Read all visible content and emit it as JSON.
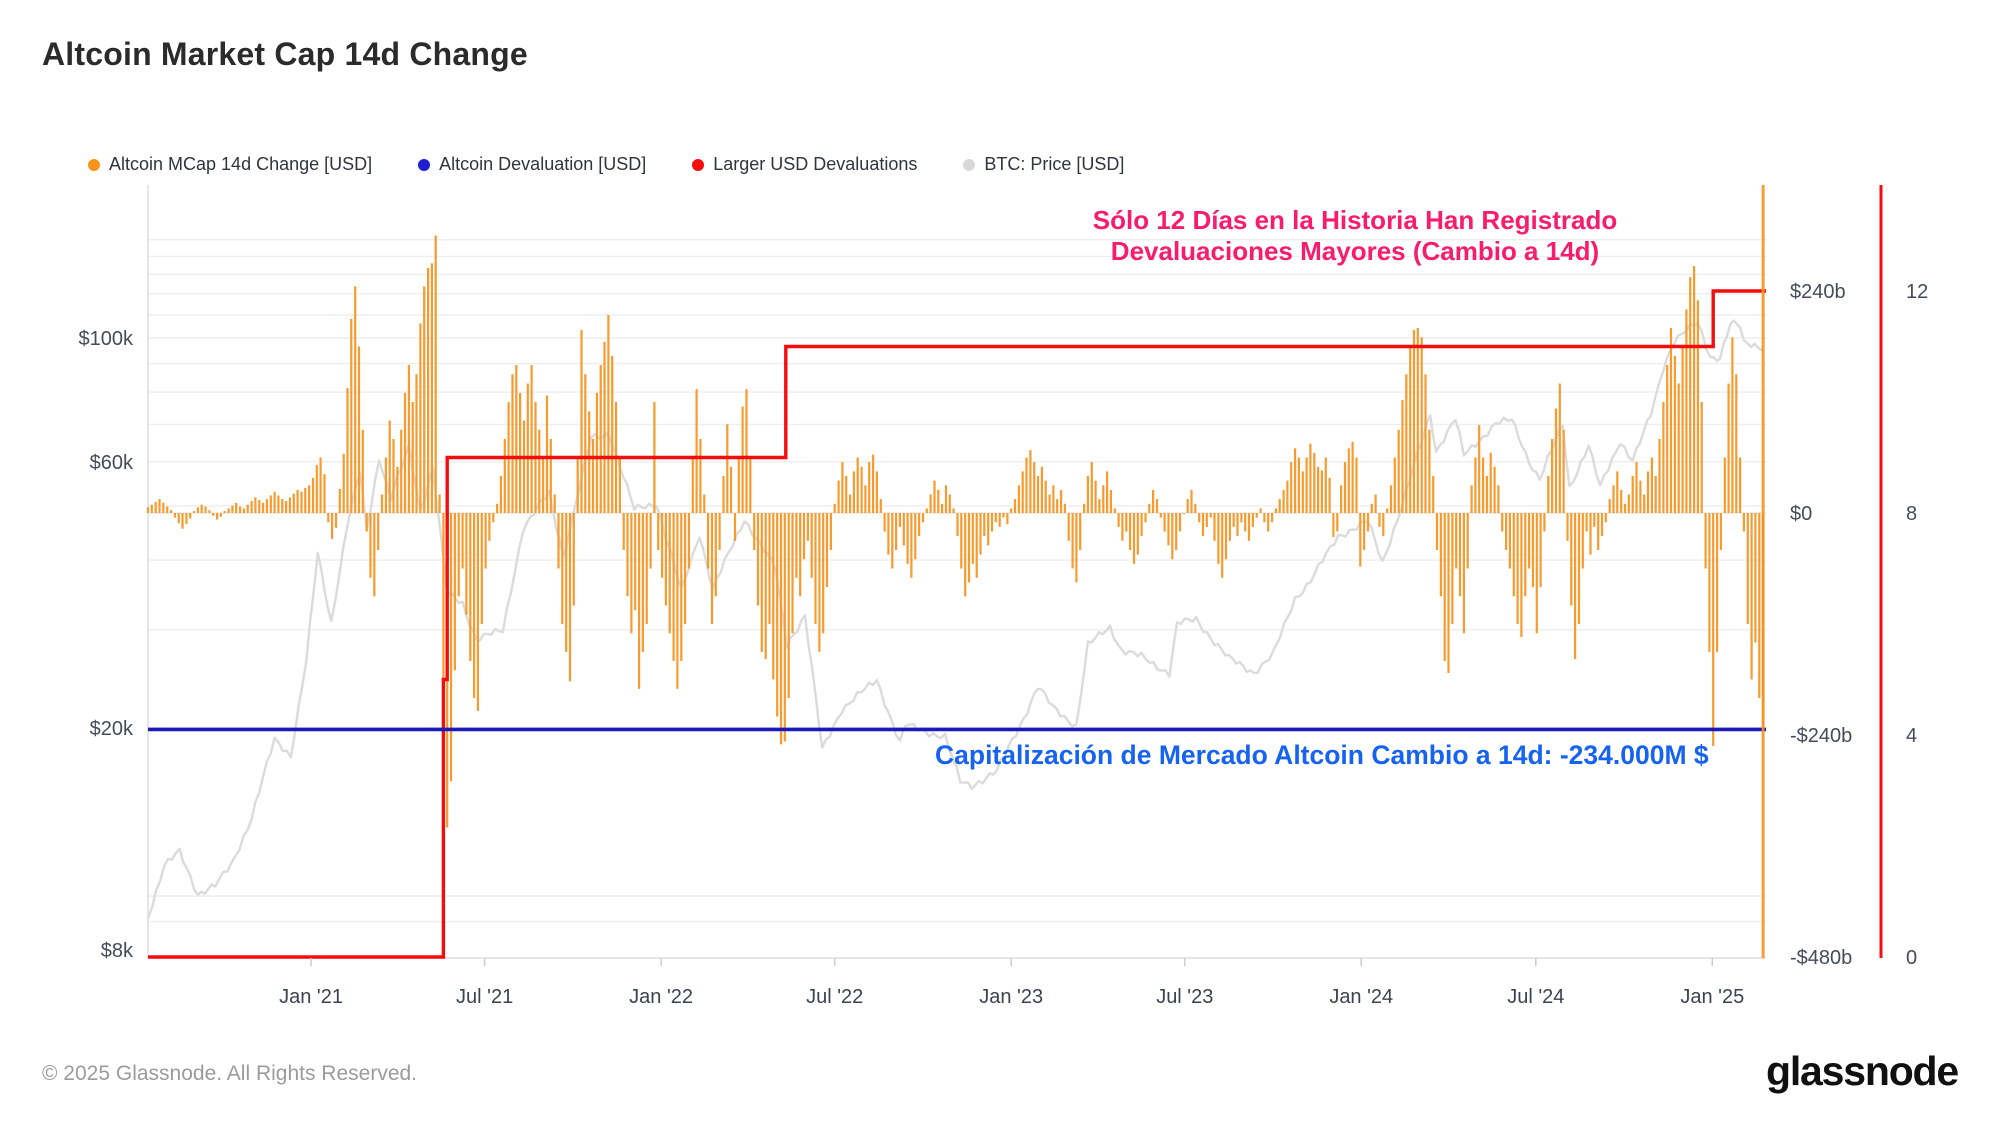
{
  "title": "Altcoin Market Cap 14d Change",
  "legend": {
    "items": [
      {
        "label": "Altcoin MCap 14d Change [USD]",
        "color": "#f7941e"
      },
      {
        "label": "Altcoin Devaluation [USD]",
        "color": "#1d1fd1"
      },
      {
        "label": "Larger USD Devaluations",
        "color": "#f40d0d"
      },
      {
        "label": "BTC: Price [USD]",
        "color": "#d8d8d8"
      }
    ]
  },
  "annotations": {
    "pink_line1": "Sólo 12 Días en la Historia Han Registrado",
    "pink_line2": "Devaluaciones Mayores (Cambio a 14d)",
    "pink_color": "#f81c6f",
    "blue_text": "Capitalización de Mercado Altcoin Cambio a 14d: -234.000M $",
    "blue_color": "#1563f0"
  },
  "footer": {
    "copyright": "© 2025 Glassnode. All Rights Reserved.",
    "logo": "glassnode"
  },
  "chart_data": {
    "type": "mixed",
    "x_range": [
      "2020-07-15",
      "2025-02-26"
    ],
    "x_axis": {
      "ticks": [
        {
          "label": "Jan '21",
          "date": "2021-01-01"
        },
        {
          "label": "Jul '21",
          "date": "2021-07-01"
        },
        {
          "label": "Jan '22",
          "date": "2022-01-01"
        },
        {
          "label": "Jul '22",
          "date": "2022-07-01"
        },
        {
          "label": "Jan '23",
          "date": "2023-01-01"
        },
        {
          "label": "Jul '23",
          "date": "2023-07-01"
        },
        {
          "label": "Jan '24",
          "date": "2024-01-01"
        },
        {
          "label": "Jul '24",
          "date": "2024-07-01"
        },
        {
          "label": "Jan '25",
          "date": "2025-01-01"
        }
      ]
    },
    "left_axis": {
      "title": "BTC: Price [USD]",
      "scale": "log",
      "unit": "USD",
      "range_k": [
        7.7,
        188
      ],
      "ticks": [
        {
          "label": "$100k",
          "value_k": 100
        },
        {
          "label": "$60k",
          "value_k": 60
        },
        {
          "label": "$20k",
          "value_k": 20
        },
        {
          "label": "$8k",
          "value_k": 8
        }
      ],
      "gridline_values_k": [
        9,
        10,
        20,
        30,
        40,
        50,
        60,
        70,
        80,
        90,
        100,
        110,
        120,
        130,
        140,
        150
      ]
    },
    "right_axis": {
      "title": "Altcoin MCap 14d Change",
      "scale": "linear",
      "unit": "billion USD",
      "range_b": [
        -480,
        355
      ],
      "ticks": [
        {
          "label": "$240b",
          "value_b": 240
        },
        {
          "label": "$0",
          "value_b": 0
        },
        {
          "label": "-$240b",
          "value_b": -240
        },
        {
          "label": "-$480b",
          "value_b": -480
        }
      ]
    },
    "count_axis": {
      "title": "Larger USD Devaluations (count of days)",
      "range": [
        0,
        12
      ],
      "ticks": [
        {
          "label": "12",
          "value": 12
        },
        {
          "label": "8",
          "value": 8
        },
        {
          "label": "4",
          "value": 4
        },
        {
          "label": "0",
          "value": 0
        }
      ]
    },
    "series": [
      {
        "name": "Altcoin MCap 14d Change [USD]",
        "type": "bar",
        "axis": "right_b",
        "color": "#f79b2f",
        "start": "2020-07-15",
        "step_days": 4,
        "values": [
          6,
          9,
          12,
          15,
          11,
          7,
          3,
          -5,
          -11,
          -17,
          -12,
          -6,
          2,
          6,
          9,
          7,
          3,
          -3,
          -7,
          -4,
          2,
          5,
          8,
          11,
          7,
          5,
          9,
          13,
          17,
          14,
          11,
          15,
          19,
          23,
          19,
          15,
          13,
          17,
          21,
          25,
          23,
          27,
          30,
          38,
          52,
          60,
          42,
          -10,
          -28,
          -16,
          26,
          64,
          135,
          210,
          245,
          180,
          90,
          -20,
          -70,
          -90,
          -40,
          20,
          60,
          100,
          80,
          50,
          90,
          130,
          160,
          120,
          150,
          205,
          245,
          265,
          270,
          300,
          20,
          -200,
          -340,
          -290,
          -170,
          -90,
          -60,
          -110,
          -160,
          -200,
          -214,
          -120,
          -60,
          -30,
          -10,
          10,
          40,
          80,
          120,
          150,
          160,
          130,
          100,
          140,
          160,
          120,
          90,
          60,
          127,
          80,
          20,
          -60,
          -120,
          -150,
          -182,
          -100,
          60,
          198,
          150,
          110,
          80,
          130,
          160,
          185,
          214,
          170,
          120,
          60,
          -40,
          -90,
          -130,
          -105,
          -190,
          -150,
          -120,
          -60,
          120,
          -40,
          -70,
          -100,
          -130,
          -160,
          -190,
          -160,
          -120,
          -60,
          60,
          134,
          80,
          20,
          -60,
          -120,
          -90,
          -40,
          40,
          96,
          50,
          -30,
          60,
          115,
          134,
          60,
          -40,
          -100,
          -150,
          -158,
          -120,
          -180,
          -220,
          -250,
          -247,
          -200,
          -130,
          -70,
          -90,
          -50,
          -30,
          -70,
          -120,
          -150,
          -130,
          -80,
          -40,
          10,
          35,
          55,
          40,
          20,
          45,
          60,
          50,
          30,
          55,
          63,
          45,
          15,
          -20,
          -45,
          -60,
          -40,
          -15,
          -35,
          -55,
          -70,
          -50,
          -25,
          -10,
          5,
          20,
          35,
          25,
          10,
          30,
          20,
          5,
          -25,
          -60,
          -90,
          -75,
          -55,
          -70,
          -45,
          -25,
          -35,
          -20,
          -10,
          -15,
          -5,
          -12,
          5,
          15,
          30,
          45,
          60,
          68,
          55,
          40,
          50,
          35,
          20,
          30,
          15,
          25,
          10,
          -30,
          -60,
          -75,
          -40,
          10,
          40,
          55,
          35,
          15,
          30,
          45,
          25,
          5,
          -15,
          -30,
          -20,
          -40,
          -55,
          -45,
          -25,
          -10,
          10,
          25,
          15,
          -5,
          -20,
          -35,
          -50,
          -40,
          -20,
          0,
          15,
          25,
          10,
          -10,
          -25,
          -15,
          -5,
          -30,
          -55,
          -70,
          -50,
          -30,
          -15,
          -25,
          -10,
          -20,
          -30,
          -15,
          -5,
          5,
          -10,
          -20,
          -10,
          5,
          15,
          25,
          35,
          55,
          70,
          60,
          45,
          60,
          75,
          65,
          50,
          46,
          60,
          38,
          -26,
          -20,
          30,
          55,
          70,
          77,
          60,
          -58,
          -40,
          -20,
          10,
          20,
          -15,
          -25,
          5,
          30,
          60,
          90,
          122,
          150,
          180,
          198,
          200,
          190,
          150,
          90,
          40,
          -40,
          -90,
          -160,
          -173,
          -120,
          -60,
          -90,
          -130,
          -60,
          30,
          60,
          95,
          60,
          40,
          65,
          50,
          30,
          -20,
          -40,
          -60,
          -90,
          -120,
          -134,
          -90,
          -60,
          -80,
          -130,
          -80,
          -20,
          40,
          80,
          113,
          140,
          90,
          -30,
          -100,
          -158,
          -120,
          -60,
          -20,
          -45,
          -15,
          -40,
          -25,
          -10,
          15,
          30,
          45,
          25,
          10,
          20,
          40,
          55,
          35,
          20,
          45,
          60,
          40,
          80,
          120,
          160,
          200,
          170,
          140,
          180,
          220,
          255,
          267,
          230,
          120,
          -60,
          -150,
          -252,
          -150,
          -40,
          60,
          140,
          190,
          150,
          60,
          -20,
          -120,
          -180,
          -140,
          -200,
          -234
        ]
      },
      {
        "name": "BTC: Price [USD]",
        "type": "line",
        "axis": "left_log_k",
        "color": "#d9d9d9",
        "points": [
          [
            "2020-07-15",
            9.2
          ],
          [
            "2020-08-01",
            11.3
          ],
          [
            "2020-08-17",
            12.0
          ],
          [
            "2020-09-05",
            10.1
          ],
          [
            "2020-09-23",
            10.4
          ],
          [
            "2020-10-10",
            11.4
          ],
          [
            "2020-10-31",
            13.8
          ],
          [
            "2020-11-24",
            19.1
          ],
          [
            "2020-12-11",
            17.9
          ],
          [
            "2020-12-27",
            26.3
          ],
          [
            "2021-01-08",
            41.0
          ],
          [
            "2021-01-22",
            31.0
          ],
          [
            "2021-02-08",
            46.4
          ],
          [
            "2021-02-21",
            57.4
          ],
          [
            "2021-02-28",
            45.2
          ],
          [
            "2021-03-13",
            61.2
          ],
          [
            "2021-03-25",
            51.7
          ],
          [
            "2021-04-13",
            63.5
          ],
          [
            "2021-04-25",
            49.1
          ],
          [
            "2021-05-08",
            58.8
          ],
          [
            "2021-05-23",
            34.8
          ],
          [
            "2021-06-08",
            33.4
          ],
          [
            "2021-06-22",
            29.0
          ],
          [
            "2021-07-20",
            29.8
          ],
          [
            "2021-08-10",
            45.6
          ],
          [
            "2021-09-06",
            52.7
          ],
          [
            "2021-09-21",
            40.7
          ],
          [
            "2021-10-20",
            66.0
          ],
          [
            "2021-11-08",
            67.5
          ],
          [
            "2021-12-04",
            49.2
          ],
          [
            "2021-12-27",
            50.7
          ],
          [
            "2022-01-22",
            35.1
          ],
          [
            "2022-02-10",
            44.6
          ],
          [
            "2022-02-24",
            35.5
          ],
          [
            "2022-03-29",
            47.4
          ],
          [
            "2022-04-30",
            38.6
          ],
          [
            "2022-05-12",
            28.3
          ],
          [
            "2022-05-31",
            31.8
          ],
          [
            "2022-06-18",
            18.3
          ],
          [
            "2022-07-08",
            21.6
          ],
          [
            "2022-08-14",
            24.4
          ],
          [
            "2022-09-07",
            18.8
          ],
          [
            "2022-09-13",
            20.2
          ],
          [
            "2022-10-24",
            19.3
          ],
          [
            "2022-11-09",
            16.0
          ],
          [
            "2022-11-21",
            15.8
          ],
          [
            "2022-12-17",
            16.7
          ],
          [
            "2023-01-14",
            20.9
          ],
          [
            "2023-01-29",
            23.7
          ],
          [
            "2023-02-13",
            21.8
          ],
          [
            "2023-03-10",
            20.2
          ],
          [
            "2023-03-22",
            28.1
          ],
          [
            "2023-04-14",
            30.4
          ],
          [
            "2023-04-26",
            27.6
          ],
          [
            "2023-05-17",
            26.8
          ],
          [
            "2023-06-15",
            25.1
          ],
          [
            "2023-06-23",
            30.7
          ],
          [
            "2023-07-13",
            31.3
          ],
          [
            "2023-08-16",
            26.6
          ],
          [
            "2023-09-11",
            25.2
          ],
          [
            "2023-10-01",
            27.0
          ],
          [
            "2023-10-24",
            34.2
          ],
          [
            "2023-11-09",
            36.7
          ],
          [
            "2023-12-08",
            44.2
          ],
          [
            "2024-01-08",
            46.9
          ],
          [
            "2024-01-23",
            39.6
          ],
          [
            "2024-02-12",
            49.9
          ],
          [
            "2024-02-28",
            61.2
          ],
          [
            "2024-03-13",
            73.1
          ],
          [
            "2024-03-19",
            62.8
          ],
          [
            "2024-04-08",
            71.6
          ],
          [
            "2024-04-17",
            61.5
          ],
          [
            "2024-05-20",
            70.3
          ],
          [
            "2024-06-06",
            71.1
          ],
          [
            "2024-06-24",
            60.3
          ],
          [
            "2024-07-05",
            55.9
          ],
          [
            "2024-07-29",
            69.9
          ],
          [
            "2024-08-05",
            54.0
          ],
          [
            "2024-08-25",
            64.2
          ],
          [
            "2024-09-06",
            53.9
          ],
          [
            "2024-09-27",
            65.5
          ],
          [
            "2024-10-10",
            60.3
          ],
          [
            "2024-10-29",
            72.7
          ],
          [
            "2024-11-11",
            88.7
          ],
          [
            "2024-11-22",
            99.0
          ],
          [
            "2024-12-05",
            103.0
          ],
          [
            "2024-12-17",
            106.1
          ],
          [
            "2024-12-30",
            92.6
          ],
          [
            "2025-01-09",
            92.5
          ],
          [
            "2025-01-20",
            106.0
          ],
          [
            "2025-01-30",
            104.7
          ],
          [
            "2025-02-03",
            97.7
          ],
          [
            "2025-02-14",
            97.5
          ],
          [
            "2025-02-23",
            96.0
          ]
        ]
      },
      {
        "name": "Larger USD Devaluations",
        "type": "step",
        "axis": "count",
        "color": "#f40d0d",
        "points": [
          [
            "2020-07-15",
            0
          ],
          [
            "2021-05-19",
            5
          ],
          [
            "2021-05-23",
            9
          ],
          [
            "2022-05-11",
            11
          ],
          [
            "2025-01-02",
            12
          ]
        ]
      },
      {
        "name": "Altcoin Devaluation [USD]",
        "type": "hline",
        "axis": "right_b",
        "color": "#1a1ab8",
        "value_b": -234
      },
      {
        "name": "current-day-marker",
        "type": "vline",
        "axis": "x",
        "color": "#f7941e",
        "date": "2025-02-23"
      }
    ]
  }
}
